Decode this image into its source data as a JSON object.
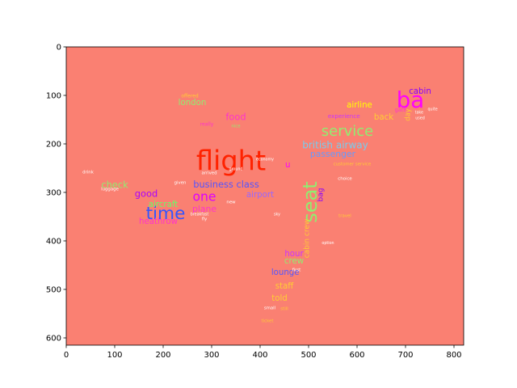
{
  "chart_data": {
    "type": "wordcloud",
    "background_color": "#fa8072",
    "xlim": [
      0,
      820
    ],
    "ylim": [
      0,
      615
    ],
    "y_inverted": true,
    "x_ticks": [
      0,
      100,
      200,
      300,
      400,
      500,
      600,
      700,
      800
    ],
    "y_ticks": [
      0,
      100,
      200,
      300,
      400,
      500,
      600
    ],
    "title": "",
    "xlabel": "",
    "ylabel": "",
    "mask_shape": "airplane",
    "mask_polygon": [
      [
        340,
        190
      ],
      [
        395,
        180
      ],
      [
        460,
        160
      ],
      [
        520,
        140
      ],
      [
        600,
        110
      ],
      [
        660,
        90
      ],
      [
        720,
        65
      ],
      [
        770,
        60
      ],
      [
        785,
        75
      ],
      [
        775,
        100
      ],
      [
        740,
        125
      ],
      [
        690,
        155
      ],
      [
        640,
        180
      ],
      [
        590,
        200
      ],
      [
        560,
        215
      ],
      [
        545,
        240
      ],
      [
        530,
        268
      ],
      [
        510,
        300
      ],
      [
        490,
        330
      ],
      [
        465,
        365
      ],
      [
        440,
        400
      ],
      [
        425,
        440
      ],
      [
        415,
        500
      ],
      [
        405,
        560
      ],
      [
        400,
        595
      ],
      [
        375,
        595
      ],
      [
        370,
        560
      ],
      [
        375,
        500
      ],
      [
        385,
        430
      ],
      [
        395,
        380
      ],
      [
        400,
        340
      ],
      [
        395,
        315
      ],
      [
        360,
        308
      ],
      [
        320,
        300
      ],
      [
        290,
        300
      ],
      [
        260,
        320
      ],
      [
        220,
        345
      ],
      [
        180,
        360
      ],
      [
        150,
        360
      ],
      [
        135,
        335
      ],
      [
        140,
        310
      ],
      [
        120,
        305
      ],
      [
        90,
        290
      ],
      [
        30,
        255
      ],
      [
        18,
        230
      ],
      [
        30,
        218
      ],
      [
        70,
        218
      ],
      [
        110,
        228
      ],
      [
        150,
        240
      ],
      [
        180,
        240
      ],
      [
        220,
        238
      ],
      [
        260,
        240
      ],
      [
        270,
        228
      ],
      [
        280,
        210
      ],
      [
        300,
        196
      ]
    ],
    "wing_polygon": [
      [
        200,
        100
      ],
      [
        220,
        90
      ],
      [
        300,
        95
      ],
      [
        350,
        108
      ],
      [
        420,
        110
      ],
      [
        415,
        140
      ],
      [
        360,
        150
      ],
      [
        320,
        160
      ],
      [
        290,
        175
      ],
      [
        240,
        165
      ],
      [
        205,
        140
      ],
      [
        195,
        118
      ]
    ],
    "words": [
      {
        "text": "flight",
        "x": 340,
        "y": 238,
        "size": 56,
        "color": "#ff2200",
        "rotate": 0
      },
      {
        "text": "ba",
        "x": 710,
        "y": 112,
        "size": 46,
        "color": "#ff00ff",
        "rotate": 0
      },
      {
        "text": "seat",
        "x": 505,
        "y": 320,
        "size": 40,
        "color": "#90ee70",
        "rotate": -90
      },
      {
        "text": "time",
        "x": 205,
        "y": 345,
        "size": 36,
        "color": "#3355ff",
        "rotate": 0
      },
      {
        "text": "service",
        "x": 580,
        "y": 175,
        "size": 30,
        "color": "#90ee70",
        "rotate": 0
      },
      {
        "text": "one",
        "x": 285,
        "y": 310,
        "size": 26,
        "color": "#dd00ff",
        "rotate": 0
      },
      {
        "text": "british airway",
        "x": 555,
        "y": 203,
        "size": 20,
        "color": "#77ccee",
        "rotate": 0
      },
      {
        "text": "business class",
        "x": 330,
        "y": 284,
        "size": 19,
        "color": "#5555ff",
        "rotate": 0
      },
      {
        "text": "passenger",
        "x": 550,
        "y": 222,
        "size": 18,
        "color": "#6699ff",
        "rotate": 0
      },
      {
        "text": "good",
        "x": 165,
        "y": 303,
        "size": 19,
        "color": "#aa00ff",
        "rotate": 0
      },
      {
        "text": "check",
        "x": 100,
        "y": 285,
        "size": 19,
        "color": "#90ee70",
        "rotate": 0
      },
      {
        "text": "food",
        "x": 350,
        "y": 145,
        "size": 19,
        "color": "#ff33cc",
        "rotate": 0
      },
      {
        "text": "plane",
        "x": 285,
        "y": 335,
        "size": 18,
        "color": "#ff33cc",
        "rotate": 0
      },
      {
        "text": "aircraft",
        "x": 200,
        "y": 325,
        "size": 17,
        "color": "#66ff66",
        "rotate": 0
      },
      {
        "text": "airport",
        "x": 400,
        "y": 305,
        "size": 17,
        "color": "#9966ff",
        "rotate": 0
      },
      {
        "text": "heathrow",
        "x": 190,
        "y": 360,
        "size": 17,
        "color": "#ff33cc",
        "rotate": 0
      },
      {
        "text": "airline",
        "x": 605,
        "y": 120,
        "size": 17,
        "color": "#ffff00",
        "rotate": 0
      },
      {
        "text": "back",
        "x": 655,
        "y": 145,
        "size": 17,
        "color": "#ffcc33",
        "rotate": 0
      },
      {
        "text": "cabin",
        "x": 730,
        "y": 92,
        "size": 17,
        "color": "#8800ff",
        "rotate": 0
      },
      {
        "text": "hour",
        "x": 470,
        "y": 427,
        "size": 17,
        "color": "#cc33ff",
        "rotate": 0
      },
      {
        "text": "crew",
        "x": 470,
        "y": 442,
        "size": 17,
        "color": "#90ee70",
        "rotate": 0
      },
      {
        "text": "lounge",
        "x": 452,
        "y": 465,
        "size": 17,
        "color": "#5555ff",
        "rotate": 0
      },
      {
        "text": "staff",
        "x": 450,
        "y": 493,
        "size": 17,
        "color": "#ffcc33",
        "rotate": 0
      },
      {
        "text": "told",
        "x": 440,
        "y": 518,
        "size": 17,
        "color": "#ffcc33",
        "rotate": 0
      },
      {
        "text": "london",
        "x": 260,
        "y": 115,
        "size": 17,
        "color": "#90ee70",
        "rotate": 0
      },
      {
        "text": "u",
        "x": 457,
        "y": 243,
        "size": 17,
        "color": "#ff00ff",
        "rotate": 0
      },
      {
        "text": "bag",
        "x": 525,
        "y": 305,
        "size": 15,
        "color": "#8800ff",
        "rotate": -90
      },
      {
        "text": "cabin crew",
        "x": 497,
        "y": 395,
        "size": 15,
        "color": "#ffcc33",
        "rotate": -90
      },
      {
        "text": "day",
        "x": 705,
        "y": 140,
        "size": 14,
        "color": "#ffcc33",
        "rotate": -90
      },
      {
        "text": "experience",
        "x": 573,
        "y": 143,
        "size": 12,
        "color": "#cc33ff",
        "rotate": 0
      },
      {
        "text": "gate",
        "x": 690,
        "y": 130,
        "size": 11,
        "color": "#ff33cc",
        "rotate": 0
      },
      {
        "text": "offered",
        "x": 255,
        "y": 102,
        "size": 10,
        "color": "#ffcc33",
        "rotate": 0
      },
      {
        "text": "really",
        "x": 290,
        "y": 160,
        "size": 10,
        "color": "#ff33cc",
        "rotate": 0
      },
      {
        "text": "nice",
        "x": 350,
        "y": 163,
        "size": 9,
        "color": "#90ee70",
        "rotate": 0
      },
      {
        "text": "luggage",
        "x": 90,
        "y": 293,
        "size": 9,
        "color": "#ffffff",
        "rotate": 0
      },
      {
        "text": "drink",
        "x": 45,
        "y": 258,
        "size": 9,
        "color": "#ffffff",
        "rotate": 0
      },
      {
        "text": "given",
        "x": 235,
        "y": 280,
        "size": 9,
        "color": "#ffffff",
        "rotate": 0
      },
      {
        "text": "arrived",
        "x": 295,
        "y": 260,
        "size": 9,
        "color": "#ffffff",
        "rotate": 0
      },
      {
        "text": "first",
        "x": 475,
        "y": 460,
        "size": 9,
        "color": "#ffffff",
        "rotate": 0
      },
      {
        "text": "choice",
        "x": 575,
        "y": 272,
        "size": 9,
        "color": "#ffffff",
        "rotate": 0
      },
      {
        "text": "travel",
        "x": 575,
        "y": 348,
        "size": 9,
        "color": "#ffcc33",
        "rotate": 0
      },
      {
        "text": "still",
        "x": 450,
        "y": 540,
        "size": 9,
        "color": "#ffcc33",
        "rotate": 0
      },
      {
        "text": "fly",
        "x": 285,
        "y": 355,
        "size": 9,
        "color": "#ffffff",
        "rotate": 0
      },
      {
        "text": "new",
        "x": 340,
        "y": 320,
        "size": 9,
        "color": "#ffffff",
        "rotate": 0
      },
      {
        "text": "option",
        "x": 540,
        "y": 404,
        "size": 8,
        "color": "#ffffff",
        "rotate": 0
      },
      {
        "text": "customer service",
        "x": 590,
        "y": 242,
        "size": 9,
        "color": "#ffcc33",
        "rotate": 0
      },
      {
        "text": "economy",
        "x": 410,
        "y": 232,
        "size": 8,
        "color": "#ffffff",
        "rotate": 0
      },
      {
        "text": "ground",
        "x": 350,
        "y": 252,
        "size": 8,
        "color": "#ffffff",
        "rotate": 0
      },
      {
        "text": "breakfast",
        "x": 275,
        "y": 345,
        "size": 8,
        "color": "#ffffff",
        "rotate": 0
      },
      {
        "text": "take",
        "x": 728,
        "y": 135,
        "size": 8,
        "color": "#ffffff",
        "rotate": 0
      },
      {
        "text": "used",
        "x": 730,
        "y": 147,
        "size": 8,
        "color": "#ffffff",
        "rotate": 0
      },
      {
        "text": "quite",
        "x": 756,
        "y": 128,
        "size": 8,
        "color": "#ffffff",
        "rotate": 0
      },
      {
        "text": "ticket",
        "x": 415,
        "y": 565,
        "size": 9,
        "color": "#ffcc33",
        "rotate": 0
      },
      {
        "text": "small",
        "x": 420,
        "y": 538,
        "size": 9,
        "color": "#ffffff",
        "rotate": 0
      },
      {
        "text": "sky",
        "x": 435,
        "y": 345,
        "size": 8,
        "color": "#ffffff",
        "rotate": 0
      }
    ]
  }
}
